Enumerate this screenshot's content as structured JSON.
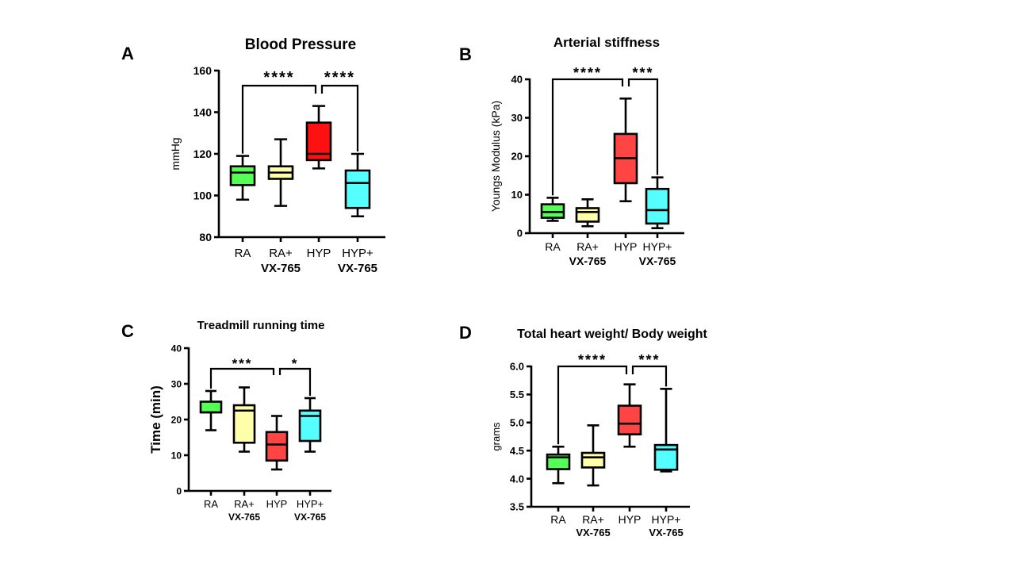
{
  "chart_data": [
    {
      "panel": "A",
      "type": "boxplot",
      "title": "Blood Pressure",
      "ylabel": "mmHg",
      "ylim": [
        80,
        160
      ],
      "yticks": [
        80,
        100,
        120,
        140,
        160
      ],
      "categories": [
        {
          "line1": "RA",
          "line2": ""
        },
        {
          "line1": "RA+",
          "line2": "VX-765"
        },
        {
          "line1": "HYP",
          "line2": ""
        },
        {
          "line1": "HYP+",
          "line2": "VX-765"
        }
      ],
      "colors": [
        "#55ff55",
        "#ffffaa",
        "#ff1111",
        "#55ffff"
      ],
      "boxes": [
        {
          "min": 98,
          "q1": 105,
          "median": 111,
          "q3": 114,
          "max": 119
        },
        {
          "min": 95,
          "q1": 108,
          "median": 111,
          "q3": 114,
          "max": 127
        },
        {
          "min": 113,
          "q1": 117,
          "median": 120,
          "q3": 135,
          "max": 143
        },
        {
          "min": 90,
          "q1": 94,
          "median": 106,
          "q3": 112,
          "max": 120
        }
      ],
      "significance": [
        {
          "from": 0,
          "to": 2,
          "label": "****"
        },
        {
          "from": 2,
          "to": 3,
          "label": "****"
        }
      ]
    },
    {
      "panel": "B",
      "type": "boxplot",
      "title": "Arterial stiffness",
      "ylabel": "Youngs Modulus (kPa)",
      "ylim": [
        0,
        40
      ],
      "yticks": [
        0,
        10,
        20,
        30,
        40
      ],
      "categories": [
        {
          "line1": "RA",
          "line2": ""
        },
        {
          "line1": "RA+",
          "line2": "VX-765"
        },
        {
          "line1": "HYP",
          "line2": ""
        },
        {
          "line1": "HYP+",
          "line2": "VX-765"
        }
      ],
      "colors": [
        "#55ff55",
        "#ffffaa",
        "#ff4444",
        "#55ffff"
      ],
      "boxes": [
        {
          "min": 3.2,
          "q1": 4,
          "median": 5.5,
          "q3": 7.5,
          "max": 9.2
        },
        {
          "min": 1.8,
          "q1": 3,
          "median": 5.5,
          "q3": 6.5,
          "max": 8.8
        },
        {
          "min": 8.3,
          "q1": 13,
          "median": 19.5,
          "q3": 25.8,
          "max": 35
        },
        {
          "min": 1.3,
          "q1": 2.5,
          "median": 6,
          "q3": 11.5,
          "max": 14.5
        }
      ],
      "significance": [
        {
          "from": 0,
          "to": 2,
          "label": "****"
        },
        {
          "from": 2,
          "to": 3,
          "label": "***"
        }
      ]
    },
    {
      "panel": "C",
      "type": "boxplot",
      "title": "Treadmill running time",
      "ylabel": "Time (min)",
      "ylim": [
        0,
        40
      ],
      "yticks": [
        0,
        10,
        20,
        30,
        40
      ],
      "categories": [
        {
          "line1": "RA",
          "line2": ""
        },
        {
          "line1": "RA+",
          "line2": "VX-765"
        },
        {
          "line1": "HYP",
          "line2": ""
        },
        {
          "line1": "HYP+",
          "line2": "VX-765"
        }
      ],
      "colors": [
        "#55ff55",
        "#ffffaa",
        "#ff4444",
        "#55ffff"
      ],
      "boxes": [
        {
          "min": 17,
          "q1": 22,
          "median": 22,
          "q3": 25,
          "max": 28
        },
        {
          "min": 11,
          "q1": 13.5,
          "median": 22.5,
          "q3": 24,
          "max": 29
        },
        {
          "min": 6,
          "q1": 8.5,
          "median": 13,
          "q3": 16.5,
          "max": 21
        },
        {
          "min": 11,
          "q1": 14,
          "median": 21,
          "q3": 22.5,
          "max": 26
        }
      ],
      "significance": [
        {
          "from": 0,
          "to": 2,
          "label": "***"
        },
        {
          "from": 2,
          "to": 3,
          "label": "*"
        }
      ]
    },
    {
      "panel": "D",
      "type": "boxplot",
      "title": "Total heart weight/ Body weight",
      "ylabel": "grams",
      "ylim": [
        3.5,
        6.0
      ],
      "yticks": [
        "3.5",
        "4.0",
        "4.5",
        "5.0",
        "5.5",
        "6.0"
      ],
      "categories": [
        {
          "line1": "RA",
          "line2": ""
        },
        {
          "line1": "RA+",
          "line2": "VX-765"
        },
        {
          "line1": "HYP",
          "line2": ""
        },
        {
          "line1": "HYP+",
          "line2": "VX-765"
        }
      ],
      "colors": [
        "#55ff55",
        "#ffffaa",
        "#ff4444",
        "#55ffff"
      ],
      "boxes": [
        {
          "min": 3.92,
          "q1": 4.17,
          "median": 4.38,
          "q3": 4.43,
          "max": 4.57
        },
        {
          "min": 3.88,
          "q1": 4.2,
          "median": 4.38,
          "q3": 4.46,
          "max": 4.95
        },
        {
          "min": 4.57,
          "q1": 4.79,
          "median": 4.98,
          "q3": 5.3,
          "max": 5.68
        },
        {
          "min": 4.13,
          "q1": 4.16,
          "median": 4.52,
          "q3": 4.6,
          "max": 5.6
        }
      ],
      "significance": [
        {
          "from": 0,
          "to": 2,
          "label": "****"
        },
        {
          "from": 2,
          "to": 3,
          "label": "***"
        }
      ]
    }
  ]
}
